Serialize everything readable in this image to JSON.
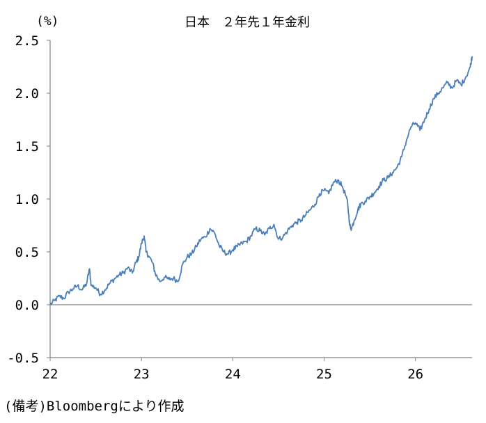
{
  "chart_data": {
    "type": "line",
    "title": "日本　２年先１年金利",
    "unit_label": "(%)",
    "source_note": "(備考)Bloombergにより作成",
    "xlabel": "",
    "ylabel": "",
    "ylim": [
      -0.5,
      2.5
    ],
    "xlim": [
      22.0,
      26.62
    ],
    "yticks": [
      "2.5",
      "2.0",
      "1.5",
      "1.0",
      "0.5",
      "0.0",
      "-0.5"
    ],
    "ytick_values": [
      2.5,
      2.0,
      1.5,
      1.0,
      0.5,
      0.0,
      -0.5
    ],
    "xticks": [
      "22",
      "23",
      "24",
      "25",
      "26"
    ],
    "xtick_values": [
      22,
      23,
      24,
      25,
      26
    ],
    "grid": false,
    "zero_line": true,
    "line_color": "#4a7ebb",
    "series": [
      {
        "x": [
          22.0,
          22.05,
          22.1,
          22.15,
          22.2,
          22.25,
          22.3,
          22.35,
          22.4,
          22.43,
          22.45,
          22.5,
          22.55,
          22.6,
          22.65,
          22.7,
          22.75,
          22.8,
          22.85,
          22.9,
          22.94,
          22.97,
          23.0,
          23.03,
          23.05,
          23.08,
          23.12,
          23.15,
          23.2,
          23.25,
          23.3,
          23.35,
          23.4,
          23.45,
          23.5,
          23.55,
          23.6,
          23.65,
          23.7,
          23.75,
          23.8,
          23.85,
          23.9,
          23.95,
          24.0,
          24.05,
          24.1,
          24.15,
          24.2,
          24.25,
          24.3,
          24.35,
          24.4,
          24.45,
          24.5,
          24.55,
          24.6,
          24.65,
          24.7,
          24.75,
          24.8,
          24.85,
          24.9,
          24.95,
          25.0,
          25.05,
          25.1,
          25.15,
          25.2,
          25.25,
          25.27,
          25.28,
          25.3,
          25.33,
          25.37,
          25.4,
          25.45,
          25.5,
          25.55,
          25.6,
          25.65,
          25.7,
          25.75,
          25.8,
          25.85,
          25.9,
          25.95,
          26.0,
          26.05,
          26.1,
          26.15,
          26.2,
          26.25,
          26.3,
          26.35,
          26.4,
          26.45,
          26.5,
          26.55,
          26.6,
          26.62
        ],
        "values": [
          0.0,
          0.04,
          0.08,
          0.06,
          0.12,
          0.15,
          0.18,
          0.14,
          0.2,
          0.34,
          0.18,
          0.16,
          0.1,
          0.14,
          0.2,
          0.24,
          0.28,
          0.3,
          0.35,
          0.3,
          0.4,
          0.45,
          0.58,
          0.65,
          0.5,
          0.46,
          0.4,
          0.3,
          0.22,
          0.26,
          0.24,
          0.25,
          0.22,
          0.38,
          0.45,
          0.48,
          0.55,
          0.62,
          0.64,
          0.72,
          0.68,
          0.56,
          0.5,
          0.48,
          0.52,
          0.55,
          0.58,
          0.6,
          0.65,
          0.72,
          0.7,
          0.66,
          0.72,
          0.76,
          0.62,
          0.64,
          0.7,
          0.75,
          0.78,
          0.8,
          0.85,
          0.9,
          0.95,
          1.05,
          1.08,
          1.05,
          1.15,
          1.18,
          1.12,
          1.0,
          0.85,
          0.75,
          0.72,
          0.8,
          0.9,
          0.95,
          0.98,
          1.02,
          1.06,
          1.12,
          1.18,
          1.2,
          1.25,
          1.3,
          1.4,
          1.55,
          1.68,
          1.72,
          1.65,
          1.75,
          1.85,
          1.95,
          2.0,
          2.05,
          2.1,
          2.05,
          2.12,
          2.08,
          2.15,
          2.25,
          2.35
        ]
      }
    ]
  }
}
